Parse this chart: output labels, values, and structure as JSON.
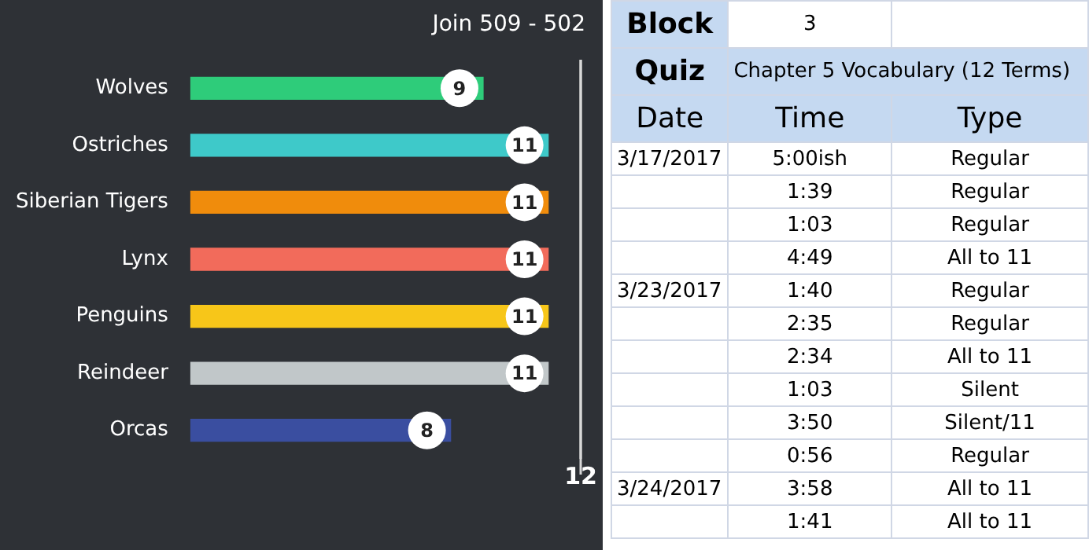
{
  "chart_data": [
    {
      "type": "bar",
      "orientation": "horizontal",
      "categories": [
        "Wolves",
        "Ostriches",
        "Siberian Tigers",
        "Lynx",
        "Penguins",
        "Reindeer",
        "Orcas"
      ],
      "values": [
        9,
        11,
        11,
        11,
        11,
        11,
        8
      ],
      "colors": [
        "#2ecc7a",
        "#3ec9c9",
        "#f08c0c",
        "#f26b5b",
        "#f7c619",
        "#c1c7c9",
        "#3a4ea0"
      ],
      "xlim": [
        0,
        12
      ],
      "xticks": [
        12
      ],
      "data_labels": true,
      "legend": false,
      "ref_lines": [
        {
          "axis": "x",
          "value": 12,
          "color": "#d8d8d8"
        }
      ],
      "annotations": [
        "Join 509 - 502"
      ]
    },
    {
      "type": "other",
      "annotations": [
        "Block",
        "3",
        "Quiz",
        "Chapter 5 Vocabulary (12 Terms)"
      ],
      "ylabel": "Date",
      "categories": [
        "Time",
        "Type"
      ],
      "y_categories": [
        "3/17/2017",
        null,
        null,
        null,
        "3/23/2017",
        null,
        null,
        null,
        null,
        null,
        "3/24/2017",
        null
      ],
      "cell_labels": [
        [
          "5:00ish",
          "Regular"
        ],
        [
          "1:39",
          "Regular"
        ],
        [
          "1:03",
          "Regular"
        ],
        [
          "4:49",
          "All to 11"
        ],
        [
          "1:40",
          "Regular"
        ],
        [
          "2:35",
          "Regular"
        ],
        [
          "2:34",
          "All to 11"
        ],
        [
          "1:03",
          "Silent"
        ],
        [
          "3:50",
          "Silent/11"
        ],
        [
          "0:56",
          "Regular"
        ],
        [
          "3:58",
          "All to 11"
        ],
        [
          "1:41",
          "All to 11"
        ]
      ]
    }
  ]
}
